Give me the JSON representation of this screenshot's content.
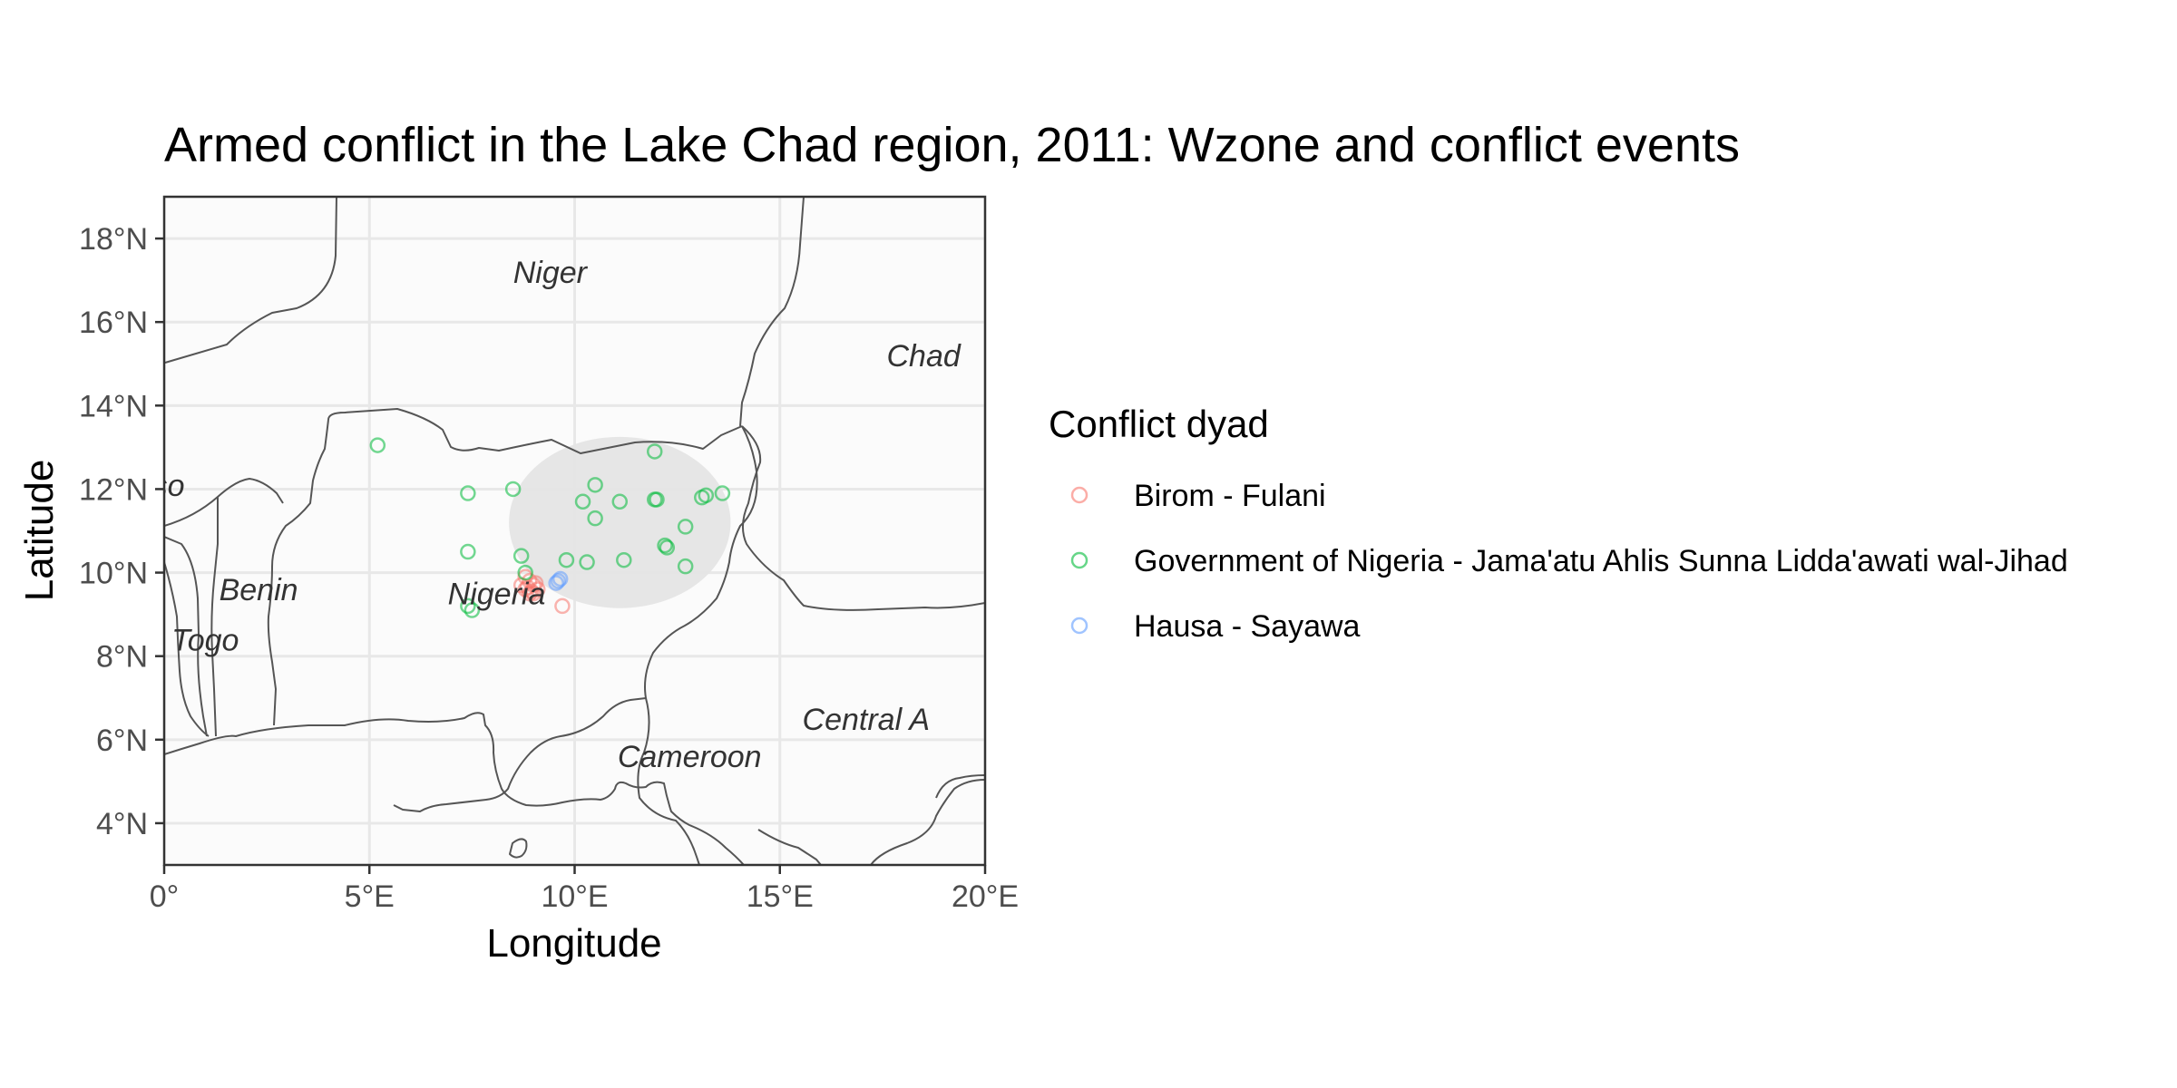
{
  "chart_data": {
    "type": "scatter",
    "title": "Armed conflict in the Lake Chad region, 2011: Wzone and conflict events",
    "xlabel": "Longitude",
    "ylabel": "Latitude",
    "xlim": [
      0,
      20
    ],
    "ylim": [
      3,
      19
    ],
    "x_ticks": [
      {
        "value": 0,
        "label": "0°"
      },
      {
        "value": 5,
        "label": "5°E"
      },
      {
        "value": 10,
        "label": "10°E"
      },
      {
        "value": 15,
        "label": "15°E"
      },
      {
        "value": 20,
        "label": "20°E"
      }
    ],
    "y_ticks": [
      {
        "value": 4,
        "label": "4°N"
      },
      {
        "value": 6,
        "label": "6°N"
      },
      {
        "value": 8,
        "label": "8°N"
      },
      {
        "value": 10,
        "label": "10°N"
      },
      {
        "value": 12,
        "label": "12°N"
      },
      {
        "value": 14,
        "label": "14°N"
      },
      {
        "value": 16,
        "label": "16°N"
      },
      {
        "value": 18,
        "label": "18°N"
      }
    ],
    "grid": true,
    "legend": {
      "title": "Conflict dyad",
      "position": "right"
    },
    "wzone": {
      "center_lon": 11.1,
      "center_lat": 11.2,
      "radius_lon": 2.7,
      "radius_lat": 2.05,
      "color": "#e5e5e5"
    },
    "country_labels": [
      {
        "name": "Niger",
        "lon": 9.4,
        "lat": 17.2
      },
      {
        "name": "Chad",
        "lon": 18.5,
        "lat": 15.2
      },
      {
        "name": "so",
        "lon": 0.1,
        "lat": 12.1
      },
      {
        "name": "Benin",
        "lon": 2.3,
        "lat": 9.6
      },
      {
        "name": "Nigeria",
        "lon": 8.1,
        "lat": 9.5
      },
      {
        "name": "Togo",
        "lon": 1.0,
        "lat": 8.4
      },
      {
        "name": "Cameroon",
        "lon": 12.8,
        "lat": 5.6
      },
      {
        "name": "Central A",
        "lon": 17.1,
        "lat": 6.5
      }
    ],
    "series": [
      {
        "name": "Birom - Fulani",
        "color": "#f8766d",
        "points": [
          [
            8.8,
            9.9
          ],
          [
            8.9,
            9.8
          ],
          [
            9.0,
            9.7
          ],
          [
            8.8,
            9.6
          ],
          [
            8.9,
            9.5
          ],
          [
            9.1,
            9.6
          ],
          [
            8.7,
            9.7
          ],
          [
            9.0,
            9.5
          ],
          [
            8.85,
            9.65
          ],
          [
            9.05,
            9.75
          ],
          [
            8.95,
            9.55
          ],
          [
            9.7,
            9.2
          ]
        ]
      },
      {
        "name": "Government of Nigeria - Jama'atu Ahlis Sunna Lidda'awati wal-Jihad",
        "color": "#00ba38",
        "points": [
          [
            5.2,
            13.05
          ],
          [
            7.4,
            11.9
          ],
          [
            8.5,
            12.0
          ],
          [
            7.4,
            10.5
          ],
          [
            8.7,
            10.4
          ],
          [
            8.8,
            10.0
          ],
          [
            7.4,
            9.2
          ],
          [
            7.5,
            9.1
          ],
          [
            10.2,
            11.7
          ],
          [
            10.5,
            12.1
          ],
          [
            11.1,
            11.7
          ],
          [
            10.5,
            11.3
          ],
          [
            9.8,
            10.3
          ],
          [
            10.3,
            10.25
          ],
          [
            11.2,
            10.3
          ],
          [
            11.95,
            12.9
          ],
          [
            11.95,
            11.75
          ],
          [
            12.0,
            11.75
          ],
          [
            12.2,
            10.65
          ],
          [
            12.25,
            10.6
          ],
          [
            12.7,
            11.1
          ],
          [
            12.7,
            10.15
          ],
          [
            13.1,
            11.8
          ],
          [
            13.2,
            11.85
          ],
          [
            13.6,
            11.9
          ]
        ]
      },
      {
        "name": "Hausa - Sayawa",
        "color": "#619cff",
        "points": [
          [
            9.6,
            9.8
          ],
          [
            9.55,
            9.75
          ],
          [
            9.65,
            9.85
          ]
        ]
      }
    ]
  }
}
